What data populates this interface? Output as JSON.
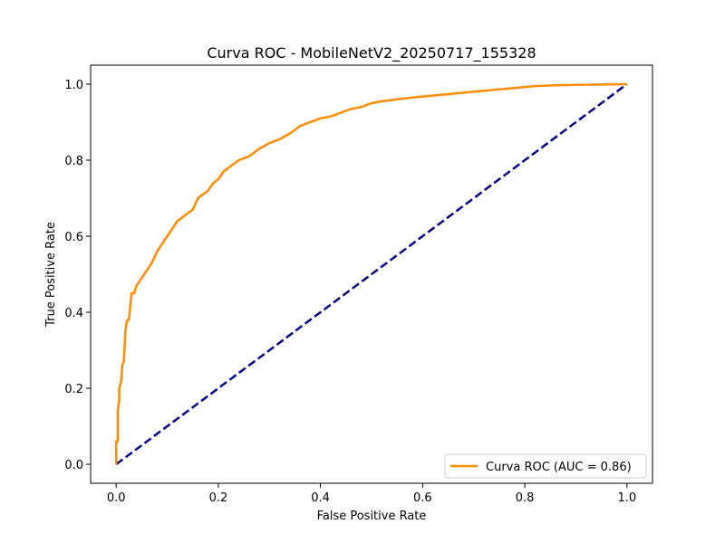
{
  "chart_data": {
    "type": "line",
    "title": "Curva ROC - MobileNetV2_20250717_155328",
    "xlabel": "False Positive Rate",
    "ylabel": "True Positive Rate",
    "xlim": [
      -0.05,
      1.05
    ],
    "ylim": [
      -0.05,
      1.05
    ],
    "xticks": [
      "0.0",
      "0.2",
      "0.4",
      "0.6",
      "0.8",
      "1.0"
    ],
    "yticks": [
      "0.0",
      "0.2",
      "0.4",
      "0.6",
      "0.8",
      "1.0"
    ],
    "grid": false,
    "legend_position": "lower right",
    "series": [
      {
        "name": "Curva ROC (AUC = 0.86)",
        "color": "#ff8c00",
        "style": "solid",
        "x": [
          0.0,
          0.0,
          0.003,
          0.003,
          0.006,
          0.006,
          0.01,
          0.012,
          0.015,
          0.018,
          0.02,
          0.022,
          0.025,
          0.03,
          0.035,
          0.04,
          0.05,
          0.06,
          0.07,
          0.08,
          0.09,
          0.1,
          0.11,
          0.12,
          0.13,
          0.14,
          0.15,
          0.16,
          0.17,
          0.18,
          0.19,
          0.2,
          0.21,
          0.22,
          0.24,
          0.26,
          0.28,
          0.3,
          0.32,
          0.34,
          0.36,
          0.38,
          0.4,
          0.42,
          0.44,
          0.46,
          0.48,
          0.5,
          0.52,
          0.55,
          0.58,
          0.62,
          0.66,
          0.7,
          0.74,
          0.78,
          0.82,
          0.86,
          0.9,
          0.95,
          1.0
        ],
        "y": [
          0.0,
          0.06,
          0.06,
          0.14,
          0.17,
          0.2,
          0.22,
          0.26,
          0.27,
          0.35,
          0.37,
          0.38,
          0.38,
          0.45,
          0.45,
          0.47,
          0.49,
          0.51,
          0.53,
          0.56,
          0.58,
          0.6,
          0.62,
          0.64,
          0.65,
          0.66,
          0.67,
          0.7,
          0.71,
          0.72,
          0.74,
          0.75,
          0.77,
          0.78,
          0.8,
          0.81,
          0.83,
          0.845,
          0.855,
          0.87,
          0.89,
          0.9,
          0.91,
          0.915,
          0.925,
          0.935,
          0.94,
          0.95,
          0.955,
          0.96,
          0.965,
          0.97,
          0.975,
          0.98,
          0.985,
          0.99,
          0.995,
          0.997,
          0.998,
          0.999,
          1.0
        ]
      },
      {
        "color": "#000080",
        "style": "dashed",
        "x": [
          0.0,
          1.0
        ],
        "y": [
          0.0,
          1.0
        ]
      }
    ]
  }
}
